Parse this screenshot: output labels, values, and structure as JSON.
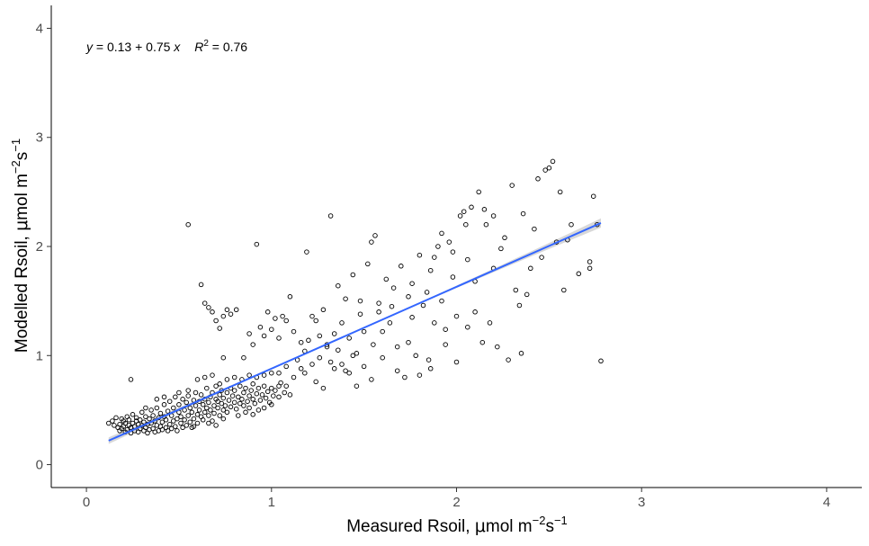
{
  "chart_data": {
    "type": "scatter",
    "xlabel_parts": {
      "prefix": "Measured Rsoil, ",
      "mu": "μ",
      "unit_a": "mol m",
      "exp_a": "−2",
      "unit_b": "s",
      "exp_b": "−1"
    },
    "ylabel_parts": {
      "prefix": "Modelled Rsoil, ",
      "mu": "μ",
      "unit_a": "mol m",
      "exp_a": "−2",
      "unit_b": "s",
      "exp_b": "−1"
    },
    "xlim": [
      -0.19,
      4.19
    ],
    "ylim": [
      -0.21,
      4.21
    ],
    "x_ticks": [
      "0",
      "1",
      "2",
      "3",
      "4"
    ],
    "y_ticks": [
      "0",
      "1",
      "2",
      "3",
      "4"
    ],
    "grid": false,
    "annotation": {
      "y_var": "y",
      "eq_rest": " = 0.13 + 0.75 ",
      "x_var": "x",
      "r_var": "R",
      "r_exp": "2",
      "r_rest": " = 0.76"
    },
    "fit": {
      "intercept": 0.13,
      "slope": 0.75,
      "x_range": [
        0.12,
        2.78
      ],
      "color": "#3366ff",
      "band_color": "#bebebe",
      "band_half_width": [
        0.03,
        0.004,
        0.042
      ]
    },
    "points": [
      [
        0.12,
        0.38
      ],
      [
        0.14,
        0.4
      ],
      [
        0.15,
        0.36
      ],
      [
        0.16,
        0.43
      ],
      [
        0.17,
        0.34
      ],
      [
        0.18,
        0.31
      ],
      [
        0.18,
        0.37
      ],
      [
        0.19,
        0.42
      ],
      [
        0.19,
        0.33
      ],
      [
        0.2,
        0.35
      ],
      [
        0.2,
        0.4
      ],
      [
        0.21,
        0.3
      ],
      [
        0.21,
        0.38
      ],
      [
        0.22,
        0.44
      ],
      [
        0.22,
        0.32
      ],
      [
        0.23,
        0.36
      ],
      [
        0.23,
        0.41
      ],
      [
        0.24,
        0.29
      ],
      [
        0.24,
        0.34
      ],
      [
        0.25,
        0.38
      ],
      [
        0.25,
        0.46
      ],
      [
        0.26,
        0.31
      ],
      [
        0.26,
        0.35
      ],
      [
        0.27,
        0.4
      ],
      [
        0.27,
        0.43
      ],
      [
        0.28,
        0.3
      ],
      [
        0.28,
        0.37
      ],
      [
        0.29,
        0.33
      ],
      [
        0.29,
        0.41
      ],
      [
        0.3,
        0.36
      ],
      [
        0.3,
        0.48
      ],
      [
        0.31,
        0.31
      ],
      [
        0.31,
        0.39
      ],
      [
        0.32,
        0.34
      ],
      [
        0.32,
        0.44
      ],
      [
        0.33,
        0.29
      ],
      [
        0.33,
        0.37
      ],
      [
        0.34,
        0.42
      ],
      [
        0.34,
        0.32
      ],
      [
        0.35,
        0.38
      ],
      [
        0.35,
        0.5
      ],
      [
        0.36,
        0.33
      ],
      [
        0.36,
        0.45
      ],
      [
        0.37,
        0.3
      ],
      [
        0.37,
        0.4
      ],
      [
        0.38,
        0.36
      ],
      [
        0.38,
        0.52
      ],
      [
        0.39,
        0.31
      ],
      [
        0.39,
        0.43
      ],
      [
        0.4,
        0.35
      ],
      [
        0.4,
        0.47
      ],
      [
        0.41,
        0.32
      ],
      [
        0.41,
        0.39
      ],
      [
        0.42,
        0.44
      ],
      [
        0.42,
        0.55
      ],
      [
        0.43,
        0.34
      ],
      [
        0.43,
        0.41
      ],
      [
        0.44,
        0.31
      ],
      [
        0.44,
        0.49
      ],
      [
        0.45,
        0.37
      ],
      [
        0.45,
        0.58
      ],
      [
        0.46,
        0.33
      ],
      [
        0.46,
        0.45
      ],
      [
        0.47,
        0.4
      ],
      [
        0.47,
        0.52
      ],
      [
        0.48,
        0.35
      ],
      [
        0.48,
        0.62
      ],
      [
        0.49,
        0.42
      ],
      [
        0.49,
        0.31
      ],
      [
        0.5,
        0.48
      ],
      [
        0.5,
        0.55
      ],
      [
        0.51,
        0.38
      ],
      [
        0.51,
        0.44
      ],
      [
        0.52,
        0.34
      ],
      [
        0.52,
        0.6
      ],
      [
        0.53,
        0.41
      ],
      [
        0.53,
        0.5
      ],
      [
        0.54,
        0.36
      ],
      [
        0.54,
        0.57
      ],
      [
        0.55,
        0.45
      ],
      [
        0.55,
        0.63
      ],
      [
        0.56,
        0.39
      ],
      [
        0.56,
        0.52
      ],
      [
        0.57,
        0.34
      ],
      [
        0.57,
        0.48
      ],
      [
        0.58,
        0.59
      ],
      [
        0.58,
        0.42
      ],
      [
        0.59,
        0.54
      ],
      [
        0.59,
        0.66
      ],
      [
        0.6,
        0.46
      ],
      [
        0.6,
        0.38
      ],
      [
        0.61,
        0.58
      ],
      [
        0.61,
        0.5
      ],
      [
        0.62,
        0.44
      ],
      [
        0.62,
        0.64
      ],
      [
        0.63,
        0.55
      ],
      [
        0.63,
        0.41
      ],
      [
        0.64,
        0.6
      ],
      [
        0.64,
        0.48
      ],
      [
        0.65,
        0.52
      ],
      [
        0.65,
        0.7
      ],
      [
        0.66,
        0.45
      ],
      [
        0.66,
        0.57
      ],
      [
        0.67,
        0.62
      ],
      [
        0.67,
        0.5
      ],
      [
        0.68,
        0.4
      ],
      [
        0.68,
        0.66
      ],
      [
        0.69,
        0.54
      ],
      [
        0.69,
        0.47
      ],
      [
        0.7,
        0.6
      ],
      [
        0.7,
        0.72
      ],
      [
        0.71,
        0.52
      ],
      [
        0.71,
        0.58
      ],
      [
        0.72,
        0.45
      ],
      [
        0.72,
        0.64
      ],
      [
        0.73,
        0.56
      ],
      [
        0.73,
        0.68
      ],
      [
        0.74,
        0.5
      ],
      [
        0.74,
        0.61
      ],
      [
        0.75,
        0.54
      ],
      [
        0.76,
        0.66
      ],
      [
        0.76,
        0.48
      ],
      [
        0.77,
        0.59
      ],
      [
        0.78,
        0.7
      ],
      [
        0.78,
        0.53
      ],
      [
        0.79,
        0.63
      ],
      [
        0.8,
        0.57
      ],
      [
        0.8,
        0.68
      ],
      [
        0.81,
        0.51
      ],
      [
        0.82,
        0.62
      ],
      [
        0.83,
        0.56
      ],
      [
        0.83,
        0.72
      ],
      [
        0.84,
        0.6
      ],
      [
        0.85,
        0.54
      ],
      [
        0.85,
        0.66
      ],
      [
        0.86,
        0.7
      ],
      [
        0.87,
        0.58
      ],
      [
        0.88,
        0.63
      ],
      [
        0.88,
        0.52
      ],
      [
        0.89,
        0.68
      ],
      [
        0.9,
        0.6
      ],
      [
        0.9,
        0.74
      ],
      [
        0.91,
        0.56
      ],
      [
        0.92,
        0.65
      ],
      [
        0.93,
        0.7
      ],
      [
        0.94,
        0.59
      ],
      [
        0.95,
        0.64
      ],
      [
        0.96,
        0.72
      ],
      [
        0.97,
        0.61
      ],
      [
        0.98,
        0.67
      ],
      [
        0.99,
        0.57
      ],
      [
        1.0,
        0.7
      ],
      [
        1.01,
        0.63
      ],
      [
        1.02,
        0.68
      ],
      [
        1.04,
        0.62
      ],
      [
        1.05,
        0.75
      ],
      [
        1.07,
        0.66
      ],
      [
        1.08,
        0.72
      ],
      [
        1.1,
        0.64
      ],
      [
        0.24,
        0.78
      ],
      [
        0.32,
        0.52
      ],
      [
        0.38,
        0.6
      ],
      [
        0.42,
        0.62
      ],
      [
        0.5,
        0.66
      ],
      [
        0.55,
        0.68
      ],
      [
        0.6,
        0.78
      ],
      [
        0.64,
        0.8
      ],
      [
        0.68,
        0.82
      ],
      [
        0.72,
        0.74
      ],
      [
        0.76,
        0.78
      ],
      [
        0.8,
        0.8
      ],
      [
        0.84,
        0.78
      ],
      [
        0.88,
        0.82
      ],
      [
        0.92,
        0.8
      ],
      [
        0.96,
        0.82
      ],
      [
        1.0,
        0.84
      ],
      [
        1.04,
        0.84
      ],
      [
        0.58,
        0.35
      ],
      [
        0.66,
        0.38
      ],
      [
        0.74,
        0.42
      ],
      [
        0.82,
        0.45
      ],
      [
        0.86,
        0.48
      ],
      [
        0.9,
        0.46
      ],
      [
        0.93,
        0.5
      ],
      [
        0.96,
        0.52
      ],
      [
        1.0,
        0.55
      ],
      [
        0.7,
        0.36
      ],
      [
        0.55,
        2.2
      ],
      [
        0.62,
        1.65
      ],
      [
        0.64,
        1.48
      ],
      [
        0.66,
        1.44
      ],
      [
        0.68,
        1.4
      ],
      [
        0.7,
        1.32
      ],
      [
        0.72,
        1.25
      ],
      [
        0.74,
        1.36
      ],
      [
        0.76,
        1.42
      ],
      [
        0.78,
        1.38
      ],
      [
        0.81,
        1.42
      ],
      [
        0.74,
        0.98
      ],
      [
        0.85,
        0.98
      ],
      [
        0.88,
        1.2
      ],
      [
        0.9,
        1.1
      ],
      [
        0.92,
        2.02
      ],
      [
        0.94,
        1.26
      ],
      [
        0.96,
        1.18
      ],
      [
        0.98,
        1.4
      ],
      [
        1.0,
        1.24
      ],
      [
        1.02,
        1.34
      ],
      [
        1.04,
        1.16
      ],
      [
        1.06,
        1.36
      ],
      [
        1.08,
        1.32
      ],
      [
        1.1,
        1.54
      ],
      [
        1.12,
        1.22
      ],
      [
        1.14,
        0.96
      ],
      [
        1.16,
        0.88
      ],
      [
        1.18,
        1.04
      ],
      [
        1.19,
        1.95
      ],
      [
        1.2,
        1.14
      ],
      [
        1.22,
        0.92
      ],
      [
        1.24,
        1.32
      ],
      [
        1.26,
        1.18
      ],
      [
        1.28,
        1.42
      ],
      [
        1.3,
        1.08
      ],
      [
        1.32,
        2.28
      ],
      [
        1.32,
        0.94
      ],
      [
        1.34,
        1.2
      ],
      [
        1.36,
        1.64
      ],
      [
        1.38,
        1.3
      ],
      [
        1.4,
        1.52
      ],
      [
        1.4,
        0.86
      ],
      [
        1.42,
        1.16
      ],
      [
        1.44,
        1.74
      ],
      [
        1.46,
        1.02
      ],
      [
        1.48,
        1.38
      ],
      [
        1.5,
        1.22
      ],
      [
        1.52,
        1.84
      ],
      [
        1.54,
        2.04
      ],
      [
        1.55,
        1.1
      ],
      [
        1.56,
        2.1
      ],
      [
        1.58,
        1.48
      ],
      [
        1.6,
        1.22
      ],
      [
        1.62,
        1.7
      ],
      [
        1.64,
        1.3
      ],
      [
        1.66,
        1.62
      ],
      [
        1.68,
        1.08
      ],
      [
        1.7,
        1.82
      ],
      [
        1.72,
        0.8
      ],
      [
        1.74,
        1.54
      ],
      [
        1.76,
        1.66
      ],
      [
        1.78,
        1.0
      ],
      [
        1.8,
        1.92
      ],
      [
        1.82,
        1.46
      ],
      [
        1.84,
        1.58
      ],
      [
        1.85,
        0.96
      ],
      [
        1.86,
        1.78
      ],
      [
        1.88,
        1.3
      ],
      [
        1.9,
        2.0
      ],
      [
        1.92,
        2.12
      ],
      [
        1.92,
        1.5
      ],
      [
        1.94,
        1.24
      ],
      [
        1.96,
        2.04
      ],
      [
        1.98,
        1.72
      ],
      [
        2.0,
        0.94
      ],
      [
        2.02,
        2.28
      ],
      [
        2.04,
        2.32
      ],
      [
        2.06,
        1.88
      ],
      [
        2.08,
        2.36
      ],
      [
        2.1,
        1.4
      ],
      [
        2.12,
        2.5
      ],
      [
        2.14,
        1.12
      ],
      [
        2.16,
        2.2
      ],
      [
        2.18,
        1.3
      ],
      [
        2.2,
        1.8
      ],
      [
        2.22,
        1.08
      ],
      [
        2.24,
        1.98
      ],
      [
        2.26,
        2.08
      ],
      [
        2.28,
        0.96
      ],
      [
        2.3,
        2.56
      ],
      [
        2.32,
        1.6
      ],
      [
        2.34,
        1.46
      ],
      [
        2.36,
        2.3
      ],
      [
        2.38,
        1.56
      ],
      [
        2.4,
        1.8
      ],
      [
        2.42,
        2.16
      ],
      [
        2.44,
        2.62
      ],
      [
        2.46,
        1.9
      ],
      [
        2.48,
        2.7
      ],
      [
        2.5,
        2.72
      ],
      [
        2.52,
        2.78
      ],
      [
        2.54,
        2.04
      ],
      [
        2.56,
        2.5
      ],
      [
        2.58,
        1.6
      ],
      [
        2.6,
        2.06
      ],
      [
        2.72,
        1.86
      ],
      [
        2.72,
        1.8
      ],
      [
        2.74,
        2.46
      ],
      [
        2.76,
        2.2
      ],
      [
        2.78,
        0.95
      ],
      [
        2.66,
        1.75
      ],
      [
        2.62,
        2.2
      ],
      [
        2.35,
        1.02
      ],
      [
        2.2,
        2.28
      ],
      [
        2.15,
        2.34
      ],
      [
        2.1,
        1.68
      ],
      [
        2.05,
        2.2
      ],
      [
        1.98,
        1.95
      ],
      [
        1.88,
        1.9
      ],
      [
        1.76,
        1.35
      ],
      [
        1.65,
        1.45
      ],
      [
        1.58,
        1.4
      ],
      [
        1.48,
        1.5
      ],
      [
        1.44,
        1.0
      ],
      [
        1.36,
        1.05
      ],
      [
        1.3,
        1.1
      ],
      [
        1.26,
        0.98
      ],
      [
        1.22,
        1.36
      ],
      [
        1.16,
        1.12
      ],
      [
        1.12,
        0.8
      ],
      [
        1.08,
        0.9
      ],
      [
        1.04,
        0.72
      ],
      [
        1.18,
        0.84
      ],
      [
        1.24,
        0.76
      ],
      [
        1.28,
        0.7
      ],
      [
        1.34,
        0.88
      ],
      [
        1.38,
        0.92
      ],
      [
        1.42,
        0.84
      ],
      [
        1.46,
        0.72
      ],
      [
        1.5,
        0.9
      ],
      [
        1.54,
        0.78
      ],
      [
        1.6,
        0.98
      ],
      [
        1.68,
        0.86
      ],
      [
        1.74,
        1.12
      ],
      [
        1.8,
        0.82
      ],
      [
        1.86,
        0.88
      ],
      [
        1.94,
        1.1
      ],
      [
        2.0,
        1.36
      ],
      [
        2.06,
        1.26
      ]
    ]
  }
}
